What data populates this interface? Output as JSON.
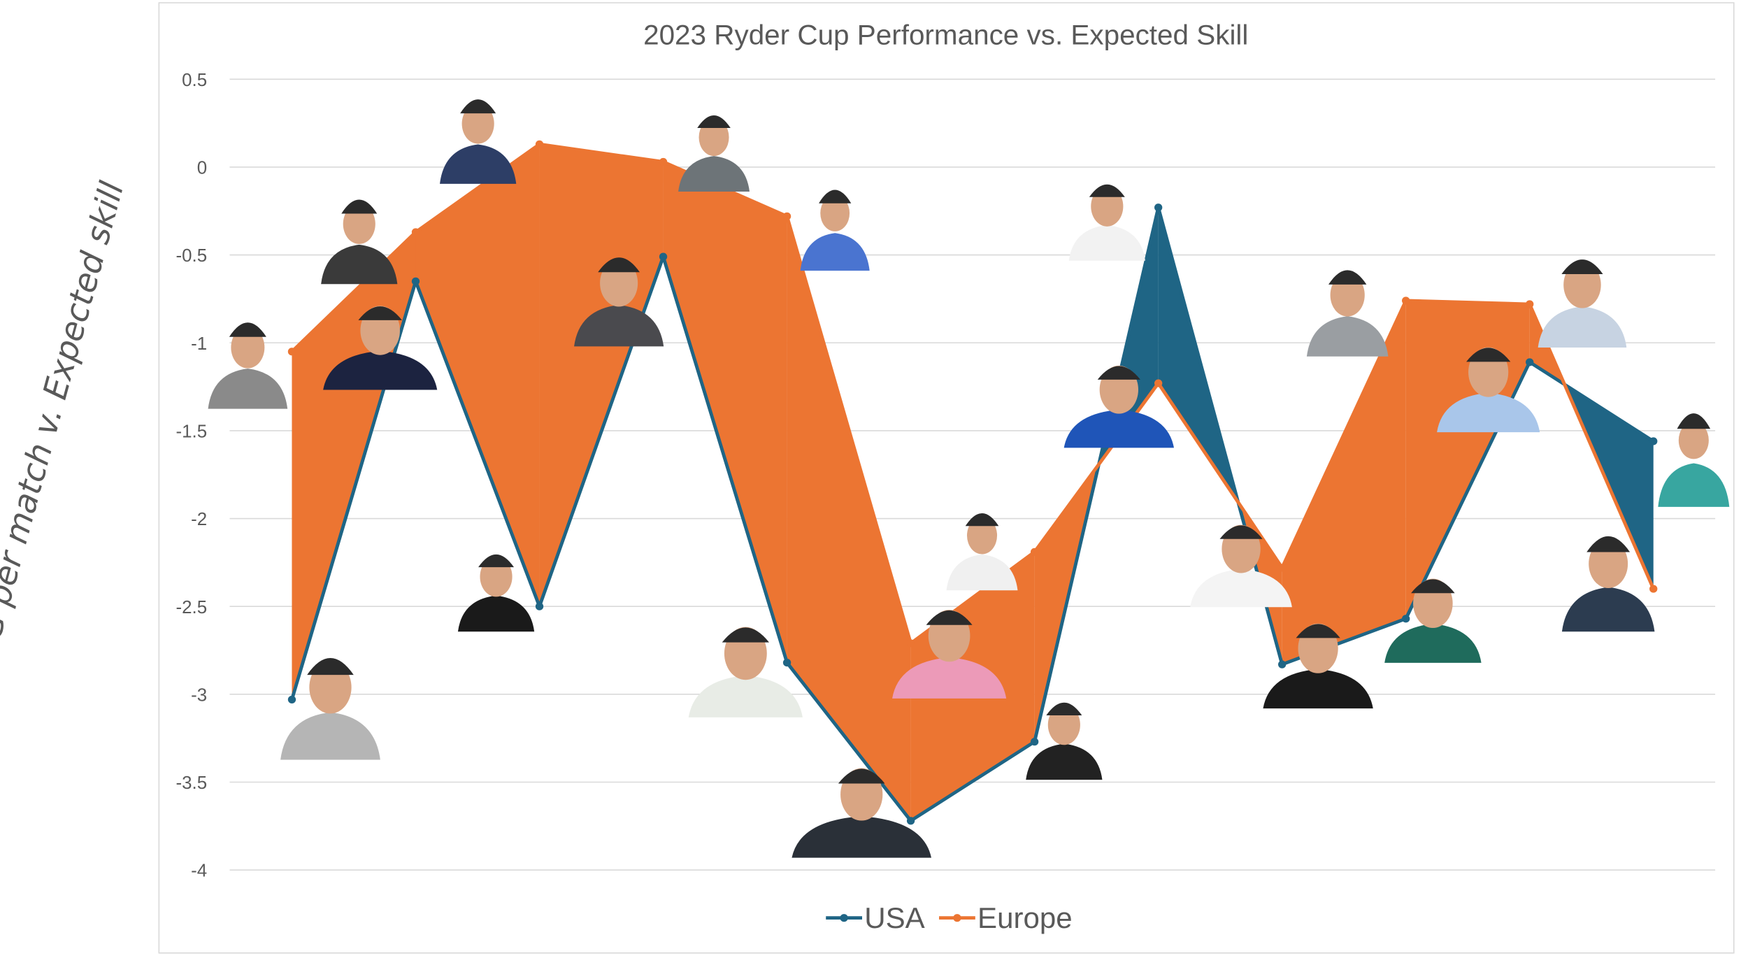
{
  "chart_data": {
    "type": "line",
    "title": "2023 Ryder Cup Performance vs. Expected Skill",
    "xlabel": "",
    "ylabel": "SG per match v. Expected skill",
    "ylim": [
      -4,
      0.5
    ],
    "yticks": [
      "0.5",
      "0",
      "-0.5",
      "-1",
      "-1.5",
      "-2",
      "-2.5",
      "-3",
      "-3.5",
      "-4"
    ],
    "ytick_values": [
      0.5,
      0,
      -0.5,
      -1,
      -1.5,
      -2,
      -2.5,
      -3,
      -3.5,
      -4
    ],
    "grid": "horizontal",
    "legend_placement": "bottom",
    "fill_between": true,
    "point_markers": "player photos",
    "x": [
      1,
      2,
      3,
      4,
      5,
      6,
      7,
      8,
      9,
      10,
      11,
      12
    ],
    "series": [
      {
        "name": "USA",
        "color": "#1f6585",
        "values": [
          -3.03,
          -0.65,
          -2.5,
          -0.51,
          -2.82,
          -3.72,
          -3.27,
          -0.23,
          -2.83,
          -2.57,
          -1.11,
          -1.56
        ]
      },
      {
        "name": "Europe",
        "color": "#ec7532",
        "values": [
          -1.05,
          -0.37,
          0.13,
          0.03,
          -0.28,
          -2.71,
          -2.19,
          -1.23,
          -2.28,
          -0.76,
          -0.78,
          -2.4
        ]
      }
    ]
  }
}
